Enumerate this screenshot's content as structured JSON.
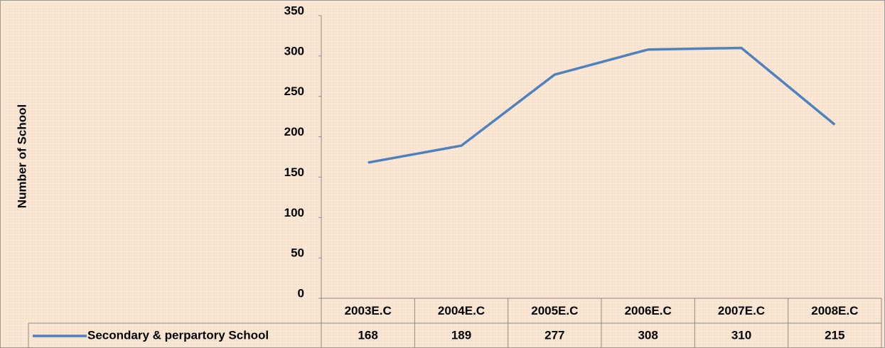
{
  "chart_data": {
    "type": "line",
    "y_label": "Number of School",
    "categories": [
      "2003E.C",
      "2004E.C",
      "2005E.C",
      "2006E.C",
      "2007E.C",
      "2008E.C"
    ],
    "series": [
      {
        "name": "Secondary & perpartory School",
        "color": "#4f81bd",
        "values": [
          168,
          189,
          277,
          308,
          310,
          215
        ]
      }
    ],
    "ylim": [
      0,
      350
    ],
    "yticks": [
      0,
      50,
      100,
      150,
      200,
      250,
      300,
      350
    ]
  }
}
